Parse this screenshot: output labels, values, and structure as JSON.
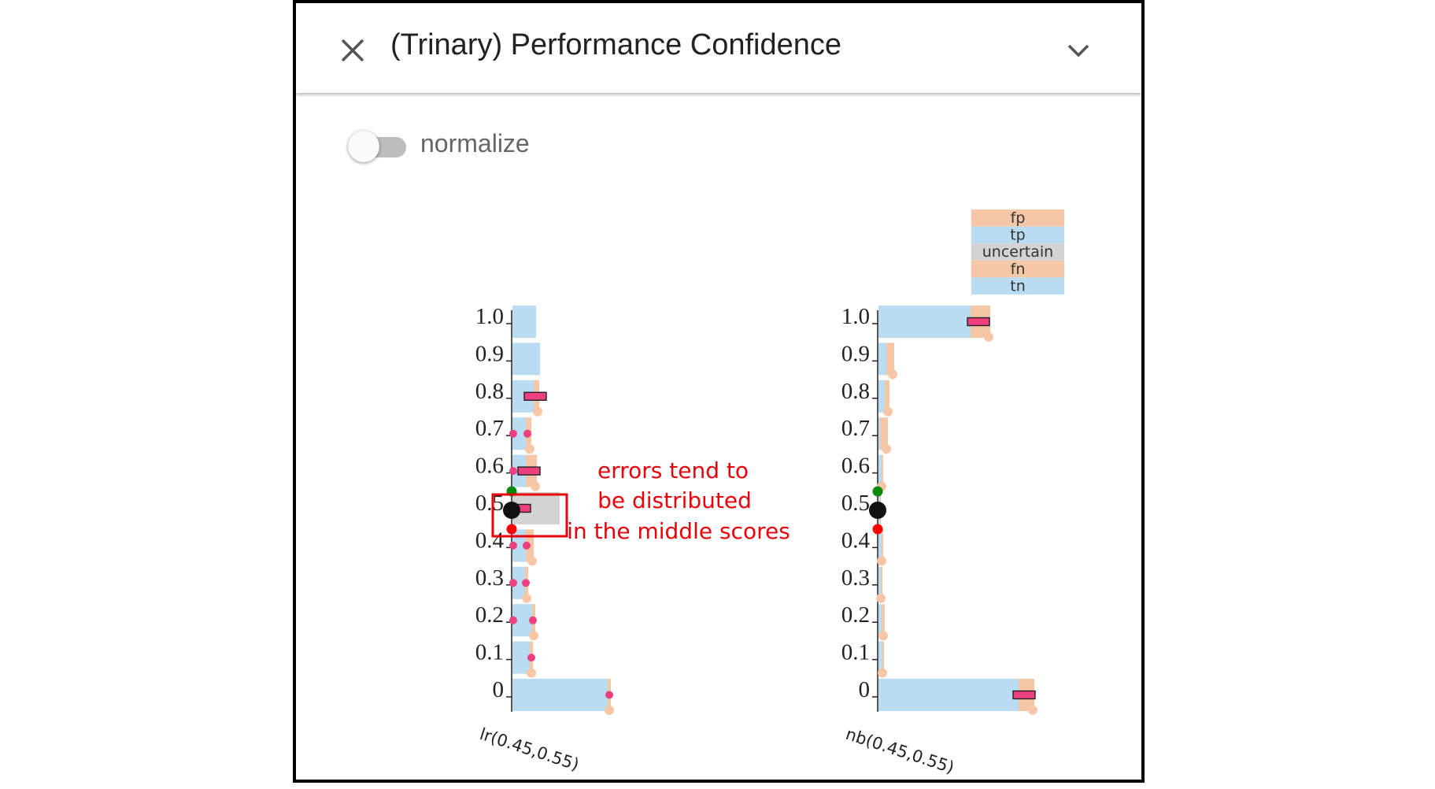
{
  "header": {
    "title": "(Trinary) Performance Confidence",
    "close_icon": "close-icon",
    "collapse_icon": "chevron-down-icon"
  },
  "controls": {
    "normalize_label": "normalize",
    "normalize_on": false
  },
  "colors": {
    "tp": "#b9dcf2",
    "tn": "#b9dcf2",
    "fp": "#f6c7a6",
    "fn": "#f6c7a6",
    "uncertain": "#d3d3d3",
    "error_marker": "#ee3f7e",
    "upper_threshold": "#0a8a0a",
    "lower_threshold": "#ff0000",
    "center_marker": "#111111",
    "annotation": "#e8000b"
  },
  "chart_data": {
    "type": "bar",
    "orientation": "horizontal",
    "legend": [
      "fp",
      "tp",
      "uncertain",
      "fn",
      "tn"
    ],
    "legend_position": "top-right",
    "score_ticks": [
      "0",
      "0.1",
      "0.2",
      "0.3",
      "0.4",
      "0.5",
      "0.6",
      "0.7",
      "0.8",
      "0.9",
      "1.0"
    ],
    "models": [
      {
        "name": "lr(0.45,0.55)",
        "thresholds": [
          0.45,
          0.55
        ],
        "bins": [
          {
            "score": "0",
            "correct": 121,
            "error": 4,
            "error_markers": [
              {
                "pos": 124,
                "type": "dot"
              }
            ]
          },
          {
            "score": "0.1",
            "correct": 22,
            "error": 4,
            "error_markers": [
              {
                "pos": 25,
                "type": "dot"
              }
            ]
          },
          {
            "score": "0.2",
            "correct": 25,
            "error": 4,
            "error_markers": [
              {
                "pos": 2,
                "type": "dot"
              },
              {
                "pos": 27,
                "type": "dot"
              }
            ]
          },
          {
            "score": "0.3",
            "correct": 16,
            "error": 4,
            "error_markers": [
              {
                "pos": 2,
                "type": "dot"
              },
              {
                "pos": 18,
                "type": "dot"
              }
            ]
          },
          {
            "score": "0.4",
            "correct": 17,
            "error": 10,
            "error_markers": [
              {
                "pos": 2,
                "type": "dot"
              },
              {
                "pos": 19,
                "type": "dot"
              }
            ]
          },
          {
            "score": "0.5",
            "uncertain": 50,
            "error": 10,
            "error_markers": [
              {
                "pos": 10,
                "type": "box"
              }
            ]
          },
          {
            "score": "0.6",
            "correct": 17,
            "error": 14,
            "error_markers": [
              {
                "pos": 2,
                "type": "dot"
              },
              {
                "pos": 22,
                "type": "box"
              }
            ]
          },
          {
            "score": "0.7",
            "correct": 17,
            "error": 7,
            "error_markers": [
              {
                "pos": 2,
                "type": "dot"
              },
              {
                "pos": 20,
                "type": "dot"
              }
            ]
          },
          {
            "score": "0.8",
            "correct": 27,
            "error": 7,
            "error_markers": [
              {
                "pos": 30,
                "type": "box"
              }
            ]
          },
          {
            "score": "0.9",
            "correct": 35,
            "error": 0,
            "error_markers": []
          },
          {
            "score": "1.0",
            "correct": 30,
            "error": 0,
            "error_markers": []
          }
        ]
      },
      {
        "name": "nb(0.45,0.55)",
        "thresholds": [
          0.45,
          0.55
        ],
        "bins": [
          {
            "score": "0",
            "correct": 178,
            "error": 20,
            "error_markers": [
              {
                "pos": 186,
                "type": "box"
              }
            ]
          },
          {
            "score": "0.1",
            "correct": 5,
            "error": 2,
            "error_markers": []
          },
          {
            "score": "0.2",
            "correct": 4,
            "error": 4,
            "error_markers": []
          },
          {
            "score": "0.3",
            "correct": 3,
            "error": 2,
            "error_markers": []
          },
          {
            "score": "0.4",
            "correct": 4,
            "error": 2,
            "error_markers": []
          },
          {
            "score": "0.5",
            "uncertain": 3,
            "error": 0,
            "error_markers": []
          },
          {
            "score": "0.6",
            "correct": 4,
            "error": 2,
            "error_markers": []
          },
          {
            "score": "0.7",
            "correct": 2,
            "error": 10,
            "error_markers": []
          },
          {
            "score": "0.8",
            "correct": 8,
            "error": 6,
            "error_markers": []
          },
          {
            "score": "0.9",
            "correct": 10,
            "error": 10,
            "error_markers": []
          },
          {
            "score": "1.0",
            "correct": 117,
            "error": 25,
            "error_markers": [
              {
                "pos": 128,
                "type": "box"
              }
            ]
          }
        ]
      }
    ],
    "annotation": {
      "lines": [
        "errors tend to",
        "be distributed",
        "in the middle scores"
      ],
      "target_model": "lr(0.45,0.55)",
      "target_score": "0.5"
    }
  }
}
